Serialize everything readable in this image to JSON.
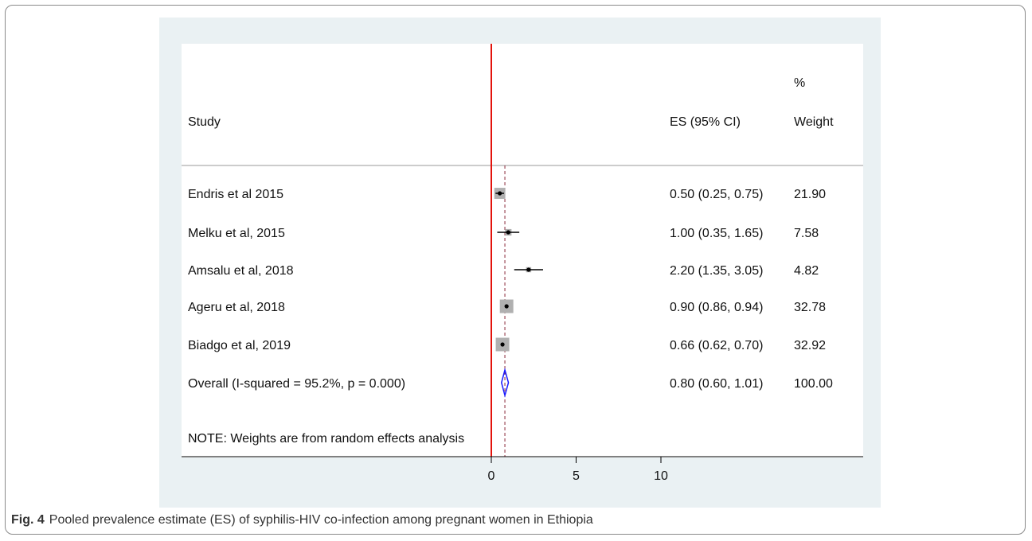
{
  "caption": {
    "label": "Fig. 4",
    "text": "Pooled prevalence estimate (ES) of syphilis-HIV co-infection among pregnant women in Ethiopia"
  },
  "headers": {
    "study": "Study",
    "es": "ES (95% CI)",
    "weight_pct": "%",
    "weight": "Weight"
  },
  "note": "NOTE: Weights are from random effects analysis",
  "colors": {
    "null_line": "#e3120b",
    "overall_line": "#8b2a3a",
    "diamond": "#1a1aff",
    "box": "#b0b0b0",
    "plot_bg": "#eaf1f3"
  },
  "chart_data": {
    "type": "forest",
    "x_ticks": [
      0,
      5,
      10
    ],
    "xlim": [
      0,
      10
    ],
    "null_value": 0,
    "overall_value": 0.8,
    "studies": [
      {
        "label": "Endris et al  2015",
        "es": 0.5,
        "lo": 0.25,
        "hi": 0.75,
        "weight": 21.9,
        "es_text": "0.50 (0.25, 0.75)",
        "weight_text": "21.90"
      },
      {
        "label": "Melku et al, 2015",
        "es": 1.0,
        "lo": 0.35,
        "hi": 1.65,
        "weight": 7.58,
        "es_text": "1.00 (0.35, 1.65)",
        "weight_text": "7.58"
      },
      {
        "label": "Amsalu et al, 2018",
        "es": 2.2,
        "lo": 1.35,
        "hi": 3.05,
        "weight": 4.82,
        "es_text": "2.20 (1.35, 3.05)",
        "weight_text": "4.82"
      },
      {
        "label": "Ageru et al, 2018",
        "es": 0.9,
        "lo": 0.86,
        "hi": 0.94,
        "weight": 32.78,
        "es_text": "0.90 (0.86, 0.94)",
        "weight_text": "32.78"
      },
      {
        "label": "Biadgo et al, 2019",
        "es": 0.66,
        "lo": 0.62,
        "hi": 0.7,
        "weight": 32.92,
        "es_text": "0.66 (0.62, 0.70)",
        "weight_text": "32.92"
      }
    ],
    "overall": {
      "label": "Overall  (I-squared = 95.2%, p = 0.000)",
      "es": 0.8,
      "lo": 0.6,
      "hi": 1.01,
      "es_text": "0.80 (0.60, 1.01)",
      "weight_text": "100.00"
    }
  }
}
